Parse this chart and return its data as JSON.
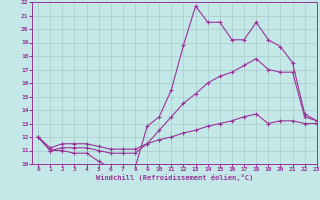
{
  "xlabel": "Windchill (Refroidissement éolien,°C)",
  "xlim": [
    -0.5,
    23
  ],
  "ylim": [
    10,
    22
  ],
  "xticks": [
    0,
    1,
    2,
    3,
    4,
    5,
    6,
    7,
    8,
    9,
    10,
    11,
    12,
    13,
    14,
    15,
    16,
    17,
    18,
    19,
    20,
    21,
    22,
    23
  ],
  "yticks": [
    10,
    11,
    12,
    13,
    14,
    15,
    16,
    17,
    18,
    19,
    20,
    21,
    22
  ],
  "bg_color": "#c4e8e8",
  "grid_color": "#a8cccc",
  "line_color": "#993399",
  "curves": [
    {
      "x": [
        0,
        1,
        2,
        3,
        4,
        5,
        6,
        7,
        8,
        9,
        10,
        11,
        12,
        13,
        14,
        15,
        16,
        17,
        18,
        19,
        20,
        21,
        22,
        23
      ],
      "y": [
        12,
        11,
        11,
        10.8,
        10.8,
        10.2,
        9.7,
        9.7,
        9.7,
        12.8,
        13.5,
        15.5,
        18.8,
        21.7,
        20.5,
        20.5,
        19.2,
        19.2,
        20.5,
        19.2,
        18.7,
        17.5,
        13.7,
        13.2
      ]
    },
    {
      "x": [
        0,
        1,
        2,
        3,
        4,
        5,
        6,
        7,
        8,
        9,
        10,
        11,
        12,
        13,
        14,
        15,
        16,
        17,
        18,
        19,
        20,
        21,
        22,
        23
      ],
      "y": [
        12,
        11,
        11.2,
        11.2,
        11.2,
        11.0,
        10.8,
        10.8,
        10.8,
        11.5,
        12.5,
        13.5,
        14.5,
        15.2,
        16.0,
        16.5,
        16.8,
        17.3,
        17.8,
        17.0,
        16.8,
        16.8,
        13.5,
        13.2
      ]
    },
    {
      "x": [
        0,
        1,
        2,
        3,
        4,
        5,
        6,
        7,
        8,
        9,
        10,
        11,
        12,
        13,
        14,
        15,
        16,
        17,
        18,
        19,
        20,
        21,
        22,
        23
      ],
      "y": [
        12,
        11.2,
        11.5,
        11.5,
        11.5,
        11.3,
        11.1,
        11.1,
        11.1,
        11.5,
        11.8,
        12.0,
        12.3,
        12.5,
        12.8,
        13.0,
        13.2,
        13.5,
        13.7,
        13.0,
        13.2,
        13.2,
        13.0,
        13.0
      ]
    }
  ]
}
